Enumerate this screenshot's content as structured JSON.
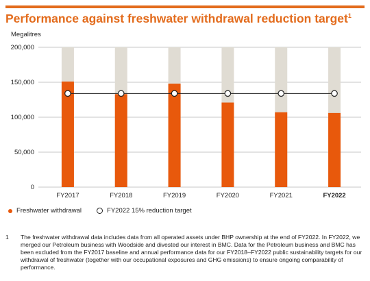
{
  "title": "Performance against freshwater withdrawal reduction target",
  "title_footnote_marker": "1",
  "footnote": {
    "marker": "1",
    "text": "The freshwater withdrawal data includes data from all operated assets under BHP ownership at the end of FY2022. In FY2022, we merged our Petroleum business with Woodside and divested our interest in BMC. Data for the Petroleum business and BMC has been excluded from the FY2017 baseline and annual performance data for our FY2018–FY2022 public sustainability targets for our withdrawal of freshwater (together with our occupational exposures and GHG emissions) to ensure ongoing comparability of performance."
  },
  "legend": {
    "bar_label": "Freshwater withdrawal",
    "target_label": "FY2022 15% reduction target"
  },
  "colors": {
    "accent": "#e36c1d",
    "bar": "#e8590c",
    "background_column": "#e0dcd3",
    "target_line": "#222222",
    "grid": "#b5b5b5"
  },
  "chart_data": {
    "type": "bar",
    "title": "Performance against freshwater withdrawal reduction target",
    "ylabel": "Megalitres",
    "categories": [
      "FY2017",
      "FY2018",
      "FY2019",
      "FY2020",
      "FY2021",
      "FY2022"
    ],
    "bold_category": "FY2022",
    "series": [
      {
        "name": "Freshwater withdrawal",
        "type": "bar",
        "values": [
          151000,
          133000,
          148000,
          121000,
          107000,
          106000
        ]
      },
      {
        "name": "FY2022 15% reduction target",
        "type": "line",
        "values": [
          134000,
          134000,
          134000,
          134000,
          134000,
          134000
        ]
      }
    ],
    "ylim": [
      0,
      200000
    ],
    "yticks": [
      0,
      50000,
      100000,
      150000,
      200000
    ],
    "ytick_labels": [
      "0",
      "50,000",
      "100,000",
      "150,000",
      "200,000"
    ],
    "grid": true,
    "legend_position": "bottom-left"
  }
}
